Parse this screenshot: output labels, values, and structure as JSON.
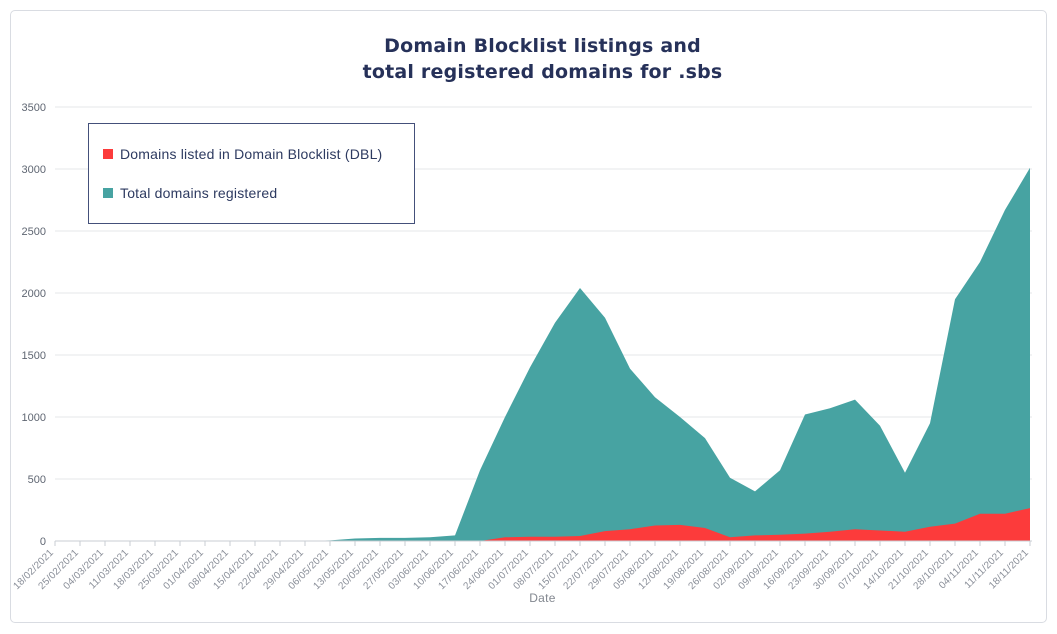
{
  "title": {
    "line1": "Domain Blocklist listings and",
    "line2": "total registered domains for .sbs"
  },
  "colors": {
    "red": "#fc3b3b",
    "teal": "#47a3a2",
    "title_text": "#263159",
    "legend_text": "#2d3a60",
    "legend_border": "#44507a",
    "grid": "#e5e7ea",
    "axis": "#c9cdd3",
    "y_tick_text": "#5f6672",
    "x_tick_text": "#8a8f99"
  },
  "chart_data": {
    "type": "area",
    "title": "Domain Blocklist listings and total registered domains for .sbs",
    "xlabel": "Date",
    "ylabel": "",
    "ylim": [
      0,
      3500
    ],
    "yticks": [
      0,
      500,
      1000,
      1500,
      2000,
      2500,
      3000,
      3500
    ],
    "grid": true,
    "legend_position": "top-left",
    "categories": [
      "18/02/2021",
      "25/02/2021",
      "04/03/2021",
      "11/03/2021",
      "18/03/2021",
      "25/03/2021",
      "01/04/2021",
      "08/04/2021",
      "15/04/2021",
      "22/04/2021",
      "29/04/2021",
      "06/05/2021",
      "13/05/2021",
      "20/05/2021",
      "27/05/2021",
      "03/06/2021",
      "10/06/2021",
      "17/06/2021",
      "24/06/2021",
      "01/07/2021",
      "08/07/2021",
      "15/07/2021",
      "22/07/2021",
      "29/07/2021",
      "05/08/2021",
      "12/08/2021",
      "19/08/2021",
      "26/08/2021",
      "02/09/2021",
      "09/09/2021",
      "16/09/2021",
      "23/09/2021",
      "30/09/2021",
      "07/10/2021",
      "14/10/2021",
      "21/10/2021",
      "28/10/2021",
      "04/11/2021",
      "11/11/2021",
      "18/11/2021"
    ],
    "series": [
      {
        "name": "Domains listed in Domain Blocklist (DBL)",
        "color": "#fc3b3b",
        "values": [
          0,
          0,
          0,
          0,
          0,
          0,
          0,
          0,
          0,
          0,
          0,
          0,
          0,
          0,
          0,
          0,
          0,
          0,
          30,
          35,
          35,
          40,
          80,
          95,
          125,
          130,
          105,
          30,
          45,
          50,
          60,
          75,
          95,
          85,
          75,
          115,
          140,
          220,
          220,
          265
        ]
      },
      {
        "name": "Total domains registered",
        "color": "#47a3a2",
        "values": [
          0,
          0,
          0,
          0,
          0,
          0,
          0,
          0,
          0,
          0,
          0,
          5,
          20,
          25,
          25,
          30,
          45,
          570,
          1000,
          1400,
          1760,
          2040,
          1800,
          1390,
          1160,
          1000,
          830,
          510,
          400,
          570,
          1020,
          1070,
          1140,
          930,
          550,
          950,
          1950,
          2250,
          2670,
          3010
        ]
      }
    ]
  }
}
